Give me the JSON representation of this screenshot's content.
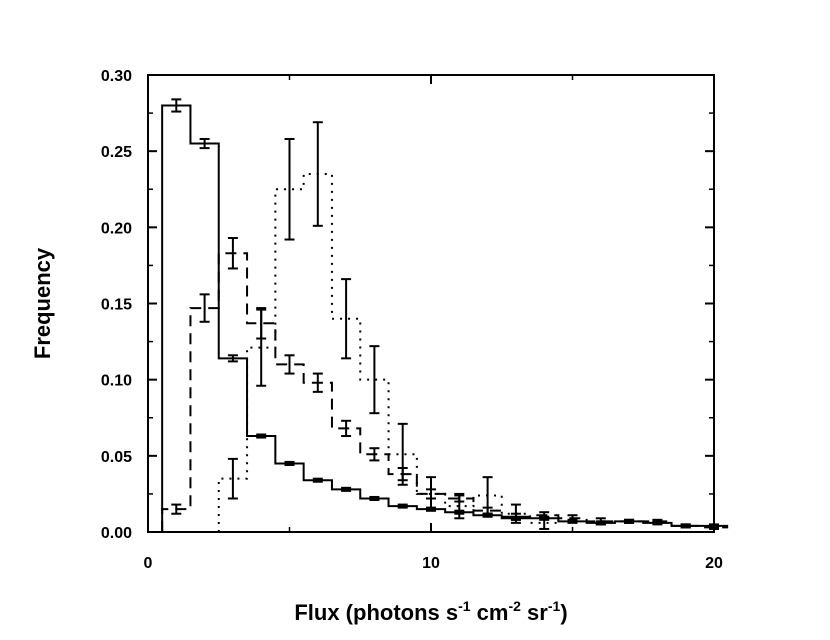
{
  "chart_data": {
    "type": "line",
    "step": true,
    "error_bars": true,
    "title": "",
    "xlabel": {
      "base": "Flux (photons s",
      "parts": [
        {
          "sup": "-1",
          "text": " cm"
        },
        {
          "sup": "-2",
          "text": " sr"
        },
        {
          "sup": "-1",
          "text": ")"
        }
      ]
    },
    "ylabel": "Frequency",
    "xlim": [
      0,
      20
    ],
    "ylim": [
      0,
      0.3
    ],
    "xticks": [
      0,
      10,
      20
    ],
    "yticks": [
      0.0,
      0.05,
      0.1,
      0.15,
      0.2,
      0.25,
      0.3
    ],
    "ytick_labels": [
      "0.00",
      "0.05",
      "0.10",
      "0.15",
      "0.20",
      "0.25",
      "0.30"
    ],
    "legend": "none",
    "grid": false,
    "series": [
      {
        "style": "solid",
        "x": [
          1,
          2,
          3,
          4,
          5,
          6,
          7,
          8,
          9,
          10,
          11,
          12,
          13,
          14,
          15,
          16,
          17,
          18,
          19,
          20
        ],
        "y": [
          0.28,
          0.255,
          0.114,
          0.063,
          0.045,
          0.034,
          0.028,
          0.022,
          0.017,
          0.015,
          0.013,
          0.011,
          0.009,
          0.009,
          0.007,
          0.006,
          0.007,
          0.006,
          0.004,
          0.004
        ],
        "err": [
          0.004,
          0.003,
          0.002,
          0.001,
          0.001,
          0.001,
          0.001,
          0.001,
          0.001,
          0.001,
          0.001,
          0.001,
          0.001,
          0.001,
          0.001,
          0.001,
          0.001,
          0.001,
          0.001,
          0.001
        ]
      },
      {
        "style": "dashed",
        "x": [
          1,
          2,
          3,
          4,
          5,
          6,
          7,
          8,
          9,
          10,
          11,
          12,
          13,
          14,
          15,
          16,
          17,
          18,
          19,
          20
        ],
        "y": [
          0.015,
          0.147,
          0.183,
          0.137,
          0.11,
          0.098,
          0.068,
          0.051,
          0.038,
          0.025,
          0.022,
          0.014,
          0.01,
          0.011,
          0.009,
          0.007,
          0.007,
          0.007,
          0.004,
          0.003
        ],
        "err": [
          0.003,
          0.009,
          0.01,
          0.01,
          0.006,
          0.006,
          0.005,
          0.004,
          0.004,
          0.003,
          0.002,
          0.002,
          0.002,
          0.002,
          0.002,
          0.002,
          0.001,
          0.001,
          0.001,
          0.001
        ]
      },
      {
        "style": "dotted",
        "x": [
          3,
          4,
          5,
          6,
          7,
          8,
          9,
          10,
          11,
          12,
          13,
          14
        ],
        "y": [
          0.035,
          0.121,
          0.225,
          0.235,
          0.14,
          0.1,
          0.051,
          0.025,
          0.017,
          0.024,
          0.012,
          0.006
        ],
        "err": [
          0.013,
          0.025,
          0.033,
          0.034,
          0.026,
          0.022,
          0.02,
          0.011,
          0.008,
          0.012,
          0.006,
          0.004
        ]
      }
    ]
  }
}
